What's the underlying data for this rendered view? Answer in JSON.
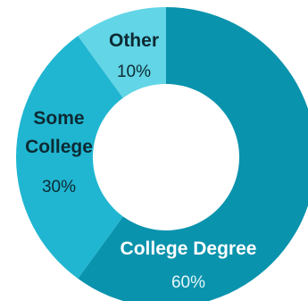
{
  "chart_data": {
    "type": "pie",
    "donut": true,
    "slices": [
      {
        "label": "College Degree",
        "value": 60,
        "value_label": "60%",
        "color": "#0a93ad",
        "name_color": "#ffffff",
        "value_color": "#e6f6fa"
      },
      {
        "label": "Some College",
        "value": 30,
        "value_label": "30%",
        "color": "#20b6d1",
        "name_color": "#0d2a33",
        "value_color": "#0d2a33"
      },
      {
        "label": "Other",
        "value": 10,
        "value_label": "10%",
        "color": "#62d5e6",
        "name_color": "#0d2a33",
        "value_color": "#0d2a33"
      }
    ]
  }
}
